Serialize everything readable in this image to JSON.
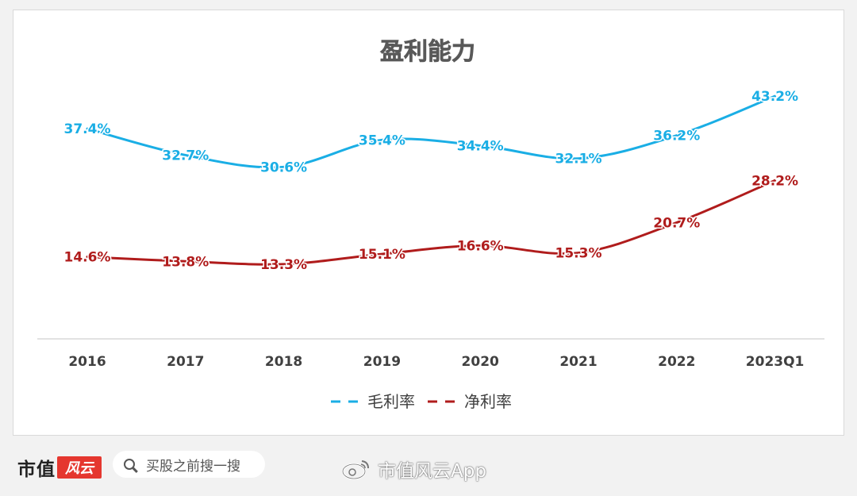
{
  "chart_data": {
    "type": "line",
    "title": "盈利能力",
    "categories": [
      "2016",
      "2017",
      "2018",
      "2019",
      "2020",
      "2021",
      "2022",
      "2023Q1"
    ],
    "series": [
      {
        "name": "毛利率",
        "values": [
          37.4,
          32.7,
          30.6,
          35.4,
          34.4,
          32.1,
          36.2,
          43.2
        ],
        "labels": [
          "37.4%",
          "32.7%",
          "30.6%",
          "35.4%",
          "34.4%",
          "32.1%",
          "36.2%",
          "43.2%"
        ],
        "color": "#1aaee5"
      },
      {
        "name": "净利率",
        "values": [
          14.6,
          13.8,
          13.3,
          15.1,
          16.6,
          15.3,
          20.7,
          28.2
        ],
        "labels": [
          "14.6%",
          "13.8%",
          "13.3%",
          "15.1%",
          "16.6%",
          "15.3%",
          "20.7%",
          "28.2%"
        ],
        "color": "#b01c1c"
      }
    ],
    "ylim": [
      0,
      50
    ],
    "grid": false,
    "legend": "bottom-center",
    "axis_color": "#d9d9d9"
  },
  "footer": {
    "brand": "市值",
    "brand_logo": "风云",
    "search_placeholder": "买股之前搜一搜",
    "weibo_text": "市值风云App"
  }
}
